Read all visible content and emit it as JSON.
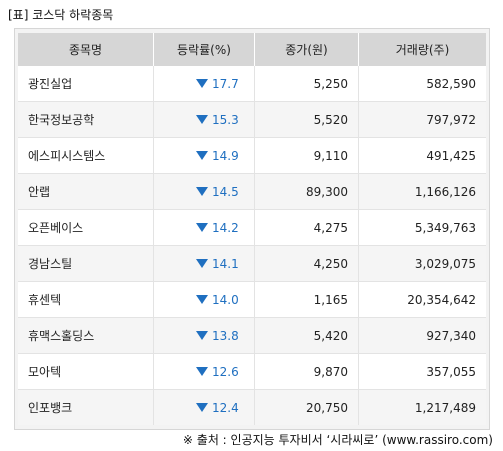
{
  "title": "[표] 코스닥 하락종목",
  "headers": [
    "종목명",
    "등락률(%)",
    "종가(원)",
    "거래량(주)"
  ],
  "rows": [
    {
      "name": "광진실업",
      "rate": "17.7",
      "close": "5,250",
      "volume": "582,590"
    },
    {
      "name": "한국정보공학",
      "rate": "15.3",
      "close": "5,520",
      "volume": "797,972"
    },
    {
      "name": "에스피시스템스",
      "rate": "14.9",
      "close": "9,110",
      "volume": "491,425"
    },
    {
      "name": "안랩",
      "rate": "14.5",
      "close": "89,300",
      "volume": "1,166,126"
    },
    {
      "name": "오픈베이스",
      "rate": "14.2",
      "close": "4,275",
      "volume": "5,349,763"
    },
    {
      "name": "경남스틸",
      "rate": "14.1",
      "close": "4,250",
      "volume": "3,029,075"
    },
    {
      "name": "휴센텍",
      "rate": "14.0",
      "close": "1,165",
      "volume": "20,354,642"
    },
    {
      "name": "휴맥스홀딩스",
      "rate": "13.8",
      "close": "5,420",
      "volume": "927,340"
    },
    {
      "name": "모아텍",
      "rate": "12.6",
      "close": "9,870",
      "volume": "357,055"
    },
    {
      "name": "인포뱅크",
      "rate": "12.4",
      "close": "20,750",
      "volume": "1,217,489"
    }
  ],
  "down_icon": "down-triangle-icon",
  "down_color": "#1f6fc0",
  "source": "※ 출처 : 인공지능 투자비서 ‘시라씨로’ (www.rassiro.com)"
}
